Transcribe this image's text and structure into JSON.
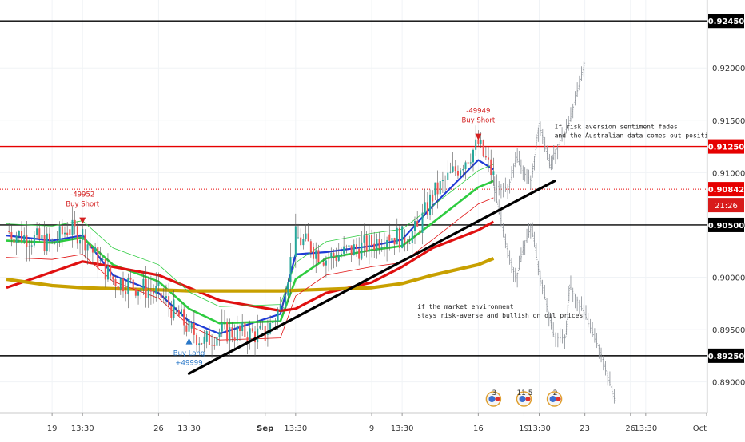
{
  "chart_data": {
    "type": "line",
    "title": "",
    "y_range": [
      0.887,
      0.9265
    ],
    "dates": [
      "2019-08-16",
      "2019-08-19",
      "2019-08-20",
      "2019-08-21",
      "2019-08-22",
      "2019-08-23",
      "2019-08-26",
      "2019-08-27",
      "2019-08-28",
      "2019-08-29",
      "2019-08-30",
      "2019-09-02",
      "2019-09-03",
      "2019-09-04",
      "2019-09-05",
      "2019-09-06",
      "2019-09-09",
      "2019-09-10",
      "2019-09-11",
      "2019-09-12",
      "2019-09-13",
      "2019-09-16",
      "2019-09-17",
      "2019-09-18",
      "2019-09-19",
      "2019-09-20",
      "2019-09-23",
      "2019-09-24",
      "2019-09-25",
      "2019-09-26",
      "2019-09-27",
      "2019-09-30",
      "2019-10-01"
    ],
    "x_ticks": [
      {
        "label": "19",
        "date": "2019-08-19"
      },
      {
        "label": "13:30",
        "date": "2019-08-21"
      },
      {
        "label": "26",
        "date": "2019-08-26"
      },
      {
        "label": "13:30",
        "date": "2019-08-28"
      },
      {
        "label": "Sep",
        "date": "2019-09-02",
        "bold": true
      },
      {
        "label": "13:30",
        "date": "2019-09-04"
      },
      {
        "label": "9",
        "date": "2019-09-09"
      },
      {
        "label": "13:30",
        "date": "2019-09-11"
      },
      {
        "label": "16",
        "date": "2019-09-16"
      },
      {
        "label": "19",
        "date": "2019-09-19"
      },
      {
        "label": "13:30",
        "date": "2019-09-20"
      },
      {
        "label": "23",
        "date": "2019-09-23"
      },
      {
        "label": "26",
        "date": "2019-09-26"
      },
      {
        "label": "13:30",
        "date": "2019-09-27"
      },
      {
        "label": "Oct",
        "date": "2019-10-01"
      }
    ],
    "y_ticks": [
      "0.89000",
      "0.89500",
      "0.90000",
      "0.90500",
      "0.91000",
      "0.91500",
      "0.92000"
    ],
    "levels": [
      {
        "value": 0.9245,
        "label": "0.92450",
        "color": "#000000"
      },
      {
        "value": 0.9125,
        "label": "0.91250",
        "color": "#e60000"
      },
      {
        "value": 0.90842,
        "label": "0.90842",
        "color": "#e60000",
        "dotted": true,
        "tag": "21:26"
      },
      {
        "value": 0.905,
        "label": "0.90500",
        "color": "#000000"
      },
      {
        "value": 0.8925,
        "label": "0.89250",
        "color": "#000000"
      }
    ],
    "price_series": {
      "name": "",
      "points": [
        [
          "2019-08-16",
          0.9044
        ],
        [
          "2019-08-19",
          0.9032
        ],
        [
          "2019-08-20",
          0.9046
        ],
        [
          "2019-08-21",
          0.9041
        ],
        [
          "2019-08-22",
          0.9016
        ],
        [
          "2019-08-23",
          0.8998
        ],
        [
          "2019-08-26",
          0.8985
        ],
        [
          "2019-08-27",
          0.8968
        ],
        [
          "2019-08-28",
          0.8951
        ],
        [
          "2019-08-29",
          0.8938
        ],
        [
          "2019-08-30",
          0.8948
        ],
        [
          "2019-09-02",
          0.8945
        ],
        [
          "2019-09-03",
          0.8971
        ],
        [
          "2019-09-04",
          0.9038
        ],
        [
          "2019-09-05",
          0.9029
        ],
        [
          "2019-09-06",
          0.9018
        ],
        [
          "2019-09-09",
          0.9032
        ],
        [
          "2019-09-10",
          0.9041
        ],
        [
          "2019-09-11",
          0.9038
        ],
        [
          "2019-09-12",
          0.9045
        ],
        [
          "2019-09-13",
          0.9078
        ],
        [
          "2019-09-16",
          0.9127
        ],
        [
          "2019-09-17",
          0.9096
        ]
      ]
    },
    "moving_averages": [
      {
        "color": "#1f3bd6",
        "points": [
          [
            "2019-08-16",
            0.904
          ],
          [
            "2019-08-19",
            0.9035
          ],
          [
            "2019-08-21",
            0.904
          ],
          [
            "2019-08-23",
            0.9002
          ],
          [
            "2019-08-26",
            0.8985
          ],
          [
            "2019-08-28",
            0.8958
          ],
          [
            "2019-08-30",
            0.8946
          ],
          [
            "2019-09-03",
            0.8965
          ],
          [
            "2019-09-04",
            0.9022
          ],
          [
            "2019-09-06",
            0.9024
          ],
          [
            "2019-09-09",
            0.903
          ],
          [
            "2019-09-11",
            0.9036
          ],
          [
            "2019-09-13",
            0.9068
          ],
          [
            "2019-09-16",
            0.9112
          ],
          [
            "2019-09-17",
            0.9103
          ]
        ]
      },
      {
        "color": "#2ecc40",
        "points": [
          [
            "2019-08-16",
            0.9035
          ],
          [
            "2019-08-19",
            0.9033
          ],
          [
            "2019-08-21",
            0.9038
          ],
          [
            "2019-08-23",
            0.9012
          ],
          [
            "2019-08-26",
            0.8996
          ],
          [
            "2019-08-28",
            0.897
          ],
          [
            "2019-08-30",
            0.8956
          ],
          [
            "2019-09-03",
            0.8958
          ],
          [
            "2019-09-04",
            0.8998
          ],
          [
            "2019-09-06",
            0.9018
          ],
          [
            "2019-09-09",
            0.9026
          ],
          [
            "2019-09-11",
            0.903
          ],
          [
            "2019-09-13",
            0.9052
          ],
          [
            "2019-09-16",
            0.9086
          ],
          [
            "2019-09-17",
            0.9092
          ]
        ]
      },
      {
        "color": "#e01010",
        "points": [
          [
            "2019-08-16",
            0.899
          ],
          [
            "2019-08-19",
            0.9005
          ],
          [
            "2019-08-21",
            0.9015
          ],
          [
            "2019-08-23",
            0.901
          ],
          [
            "2019-08-26",
            0.9002
          ],
          [
            "2019-08-28",
            0.899
          ],
          [
            "2019-08-30",
            0.8978
          ],
          [
            "2019-09-03",
            0.8968
          ],
          [
            "2019-09-04",
            0.897
          ],
          [
            "2019-09-06",
            0.8985
          ],
          [
            "2019-09-09",
            0.8995
          ],
          [
            "2019-09-11",
            0.901
          ],
          [
            "2019-09-13",
            0.9028
          ],
          [
            "2019-09-16",
            0.9045
          ],
          [
            "2019-09-17",
            0.9053
          ]
        ]
      },
      {
        "color": "#c8a000",
        "points": [
          [
            "2019-08-16",
            0.8998
          ],
          [
            "2019-08-19",
            0.8992
          ],
          [
            "2019-08-21",
            0.899
          ],
          [
            "2019-08-23",
            0.8989
          ],
          [
            "2019-08-26",
            0.8988
          ],
          [
            "2019-08-28",
            0.8987
          ],
          [
            "2019-08-30",
            0.8987
          ],
          [
            "2019-09-03",
            0.8987
          ],
          [
            "2019-09-05",
            0.8988
          ],
          [
            "2019-09-09",
            0.899
          ],
          [
            "2019-09-11",
            0.8994
          ],
          [
            "2019-09-13",
            0.9002
          ],
          [
            "2019-09-16",
            0.9012
          ],
          [
            "2019-09-17",
            0.9018
          ]
        ]
      }
    ],
    "trendline": {
      "color": "#000000",
      "points": [
        [
          "2019-08-28",
          0.8908
        ],
        [
          "2019-09-21",
          0.9092
        ]
      ]
    },
    "forecast_paths": [
      {
        "scenario": "bullish",
        "points": [
          [
            "2019-09-17",
            0.9088
          ],
          [
            "2019-09-18",
            0.9085
          ],
          [
            "2019-09-18T12",
            0.9115
          ],
          [
            "2019-09-19",
            0.91
          ],
          [
            "2019-09-19T12",
            0.9092
          ],
          [
            "2019-09-20",
            0.9148
          ],
          [
            "2019-09-20T18",
            0.9105
          ],
          [
            "2019-09-21",
            0.9118
          ],
          [
            "2019-09-22",
            0.9148
          ],
          [
            "2019-09-23",
            0.9205
          ]
        ]
      },
      {
        "scenario": "bearish",
        "points": [
          [
            "2019-09-17",
            0.9088
          ],
          [
            "2019-09-18",
            0.902
          ],
          [
            "2019-09-18T12",
            0.8998
          ],
          [
            "2019-09-19",
            0.903
          ],
          [
            "2019-09-19T12",
            0.9048
          ],
          [
            "2019-09-20",
            0.9005
          ],
          [
            "2019-09-21",
            0.8942
          ],
          [
            "2019-09-21T18",
            0.8942
          ],
          [
            "2019-09-22",
            0.8992
          ],
          [
            "2019-09-23",
            0.8965
          ],
          [
            "2019-09-24",
            0.893
          ],
          [
            "2019-09-25",
            0.8882
          ]
        ]
      }
    ],
    "signals": [
      {
        "type": "sell",
        "date": "2019-08-21",
        "price": 0.9048,
        "lines": [
          "-49952",
          "Buy Short"
        ],
        "color": "#d42020"
      },
      {
        "type": "buy",
        "date": "2019-08-28",
        "price": 0.8945,
        "lines": [
          "Buy Long",
          "+49999"
        ],
        "color": "#2a78c8"
      },
      {
        "type": "sell",
        "date": "2019-09-16",
        "price": 0.9128,
        "lines": [
          "-49949",
          "Buy Short"
        ],
        "color": "#d42020"
      }
    ],
    "annotations": [
      {
        "date": "2019-09-21",
        "price": 0.9142,
        "lines": [
          "If risk aversion sentiment fades",
          "and the Australian data comes out positive"
        ]
      },
      {
        "date": "2019-09-12",
        "price": 0.897,
        "lines": [
          "if the market environment",
          "stays risk-averse and bullish on oil prices"
        ]
      }
    ],
    "event_badges": [
      {
        "date": "2019-09-17",
        "text": "3"
      },
      {
        "date": "2019-09-19",
        "text": "11 5"
      },
      {
        "date": "2019-09-21",
        "text": "2"
      }
    ]
  }
}
